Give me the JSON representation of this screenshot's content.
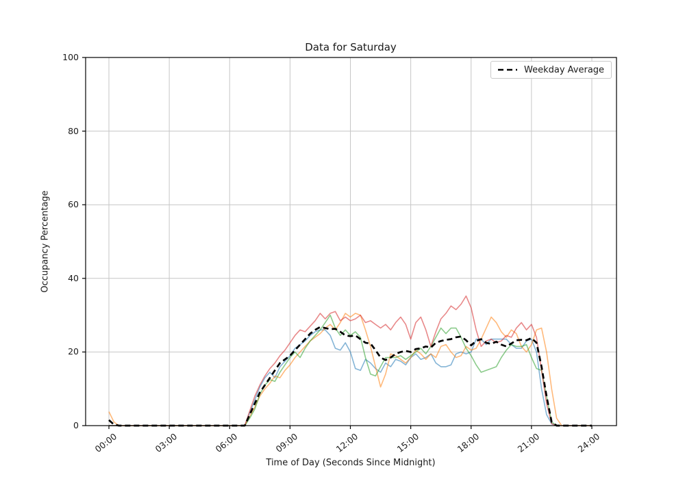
{
  "figure": {
    "title": "Data for Saturday"
  },
  "chart_data": {
    "type": "line",
    "title": "Data for Saturday",
    "xlabel": "Time of Day (Seconds Since Midnight)",
    "ylabel": "Occupancy Percentage",
    "ylim": [
      0,
      100
    ],
    "xlim_hours": [
      0,
      24
    ],
    "grid": true,
    "x_step_hours": 0.25,
    "xticks": {
      "hours": [
        0,
        3,
        6,
        9,
        12,
        15,
        18,
        21,
        24
      ],
      "labels": [
        "00:00",
        "03:00",
        "06:00",
        "09:00",
        "12:00",
        "15:00",
        "18:00",
        "21:00",
        "24:00"
      ]
    },
    "yticks": {
      "values": [
        0,
        20,
        40,
        60,
        80,
        100
      ]
    },
    "legend": {
      "position": "upper-right",
      "entries": [
        {
          "label": "Weekday Average",
          "color": "#000000",
          "style": "dashed"
        }
      ]
    },
    "series": [
      {
        "id": "saturday-sample-blue",
        "color": "#1f77b4",
        "opacity": 0.55,
        "values": [
          0,
          0,
          0,
          0,
          0,
          0,
          0,
          0,
          0,
          0,
          0,
          0,
          0,
          0,
          0,
          0,
          0,
          0,
          0,
          0,
          0,
          0,
          0,
          0,
          0,
          0,
          0,
          0,
          3.5,
          7,
          10.5,
          13,
          14.5,
          13,
          16,
          17.5,
          19,
          21,
          22,
          23,
          24.5,
          25.5,
          26,
          26,
          24.5,
          21,
          20.5,
          22.5,
          20,
          15.5,
          15,
          18,
          17,
          15.5,
          14.5,
          17,
          16,
          18,
          17.5,
          16.5,
          18.5,
          19.5,
          18,
          18.5,
          19.5,
          17,
          16,
          16,
          16.5,
          19.5,
          20,
          19.5,
          20,
          23.5,
          23.5,
          22,
          23.5,
          23.5,
          23.5,
          23.5,
          22,
          21,
          21,
          23,
          23.5,
          20,
          10,
          3,
          0.5,
          0,
          0,
          0,
          0,
          0,
          0,
          0,
          0
        ]
      },
      {
        "id": "saturday-sample-orange",
        "color": "#ff7f0e",
        "opacity": 0.55,
        "values": [
          3.8,
          1,
          0,
          0,
          0,
          0,
          0,
          0,
          0,
          0,
          0,
          0,
          0,
          0,
          0,
          0,
          0,
          0,
          0,
          0,
          0,
          0,
          0,
          0,
          0,
          0,
          0,
          0,
          2.5,
          5,
          8,
          10,
          11.5,
          13.5,
          13,
          15,
          16.5,
          18.5,
          20,
          21.5,
          23,
          24,
          25,
          26.5,
          27.5,
          26,
          28,
          30.5,
          29.5,
          30.5,
          30,
          26,
          21.5,
          16,
          10.5,
          14,
          19.5,
          19,
          18,
          17,
          18.5,
          20.5,
          19.5,
          18,
          19.5,
          18.5,
          21.5,
          22,
          20,
          18.5,
          19,
          21.5,
          20.5,
          21,
          23.5,
          26.5,
          29.5,
          28,
          25.5,
          24,
          26,
          25,
          21.5,
          20,
          22,
          26,
          26.5,
          20,
          10,
          2,
          0,
          0,
          0,
          0,
          0,
          0,
          0
        ]
      },
      {
        "id": "saturday-sample-green",
        "color": "#2ca02c",
        "opacity": 0.55,
        "values": [
          0,
          0,
          0,
          0,
          0,
          0,
          0,
          0,
          0,
          0,
          0,
          0,
          0,
          0,
          0,
          0,
          0,
          0,
          0,
          0,
          0,
          0,
          0,
          0,
          0,
          0,
          0,
          0,
          2,
          4.5,
          8.5,
          11,
          12.5,
          12,
          14.5,
          16.5,
          18.5,
          20,
          18.5,
          21,
          23,
          24.5,
          26,
          28,
          30,
          26.5,
          24.5,
          26,
          24.5,
          25.5,
          24,
          18.5,
          14,
          13.5,
          16,
          18.5,
          18.5,
          18.5,
          19,
          18,
          19,
          20,
          21,
          19.5,
          21.5,
          24,
          26.5,
          25,
          26.5,
          26.5,
          24,
          21,
          19,
          16.5,
          14.5,
          15,
          15.5,
          16,
          18.5,
          20.5,
          22,
          21.5,
          21.5,
          22,
          18.5,
          15.5,
          15,
          8,
          1,
          0,
          0,
          0,
          0,
          0,
          0,
          0,
          0
        ]
      },
      {
        "id": "saturday-sample-red",
        "color": "#d62728",
        "opacity": 0.55,
        "values": [
          0,
          0,
          0,
          0,
          0,
          0,
          0,
          0,
          0,
          0,
          0,
          0,
          0,
          0,
          0,
          0,
          0,
          0,
          0,
          0,
          0,
          0,
          0,
          0,
          0,
          0,
          0,
          0,
          4,
          8,
          11,
          13.5,
          15.5,
          17,
          19,
          20.5,
          22.5,
          24.5,
          26,
          25.5,
          27,
          28.5,
          30.5,
          29,
          30.5,
          31,
          28.5,
          29.5,
          28.5,
          29,
          30,
          28,
          28.5,
          27.5,
          26.5,
          27.5,
          26,
          28,
          29.5,
          27.5,
          23.5,
          28,
          29.5,
          26,
          21.5,
          25.5,
          29,
          30.5,
          32.5,
          31.5,
          33,
          35.2,
          32,
          26,
          21.5,
          23,
          23.5,
          22.5,
          23,
          24.5,
          24,
          26.5,
          28,
          26,
          27.5,
          24,
          15,
          6,
          0.5,
          0,
          0,
          0,
          0,
          0,
          0,
          0,
          0
        ]
      }
    ],
    "average_series": {
      "label": "Weekday Average",
      "color": "#000000",
      "dashed": true,
      "values": [
        1.5,
        0.3,
        0,
        0,
        0,
        0,
        0,
        0,
        0,
        0,
        0,
        0,
        0,
        0,
        0,
        0,
        0,
        0,
        0,
        0,
        0,
        0,
        0,
        0,
        0,
        0,
        0,
        0,
        3,
        6,
        9,
        11,
        13,
        15,
        17,
        18,
        19,
        20.5,
        22,
        23.5,
        25,
        26,
        26.8,
        26.5,
        26.2,
        26.3,
        25.5,
        24.5,
        24.3,
        24.5,
        23.5,
        22.5,
        22.3,
        20.5,
        18.5,
        17.8,
        18.5,
        19.5,
        20,
        20.3,
        20,
        20.8,
        21,
        21.5,
        21.2,
        22.5,
        23,
        23.3,
        23.5,
        24,
        24.2,
        23.2,
        21.8,
        23,
        23.5,
        22.5,
        22.2,
        22.8,
        22,
        21.5,
        22.3,
        23.2,
        23.3,
        23.2,
        23.8,
        22.5,
        16,
        8,
        1,
        0,
        0,
        0,
        0,
        0,
        0,
        0,
        0
      ]
    },
    "style": {
      "grid_color": "#c6c6c6",
      "spine_color": "#000000",
      "background": "#ffffff"
    }
  }
}
